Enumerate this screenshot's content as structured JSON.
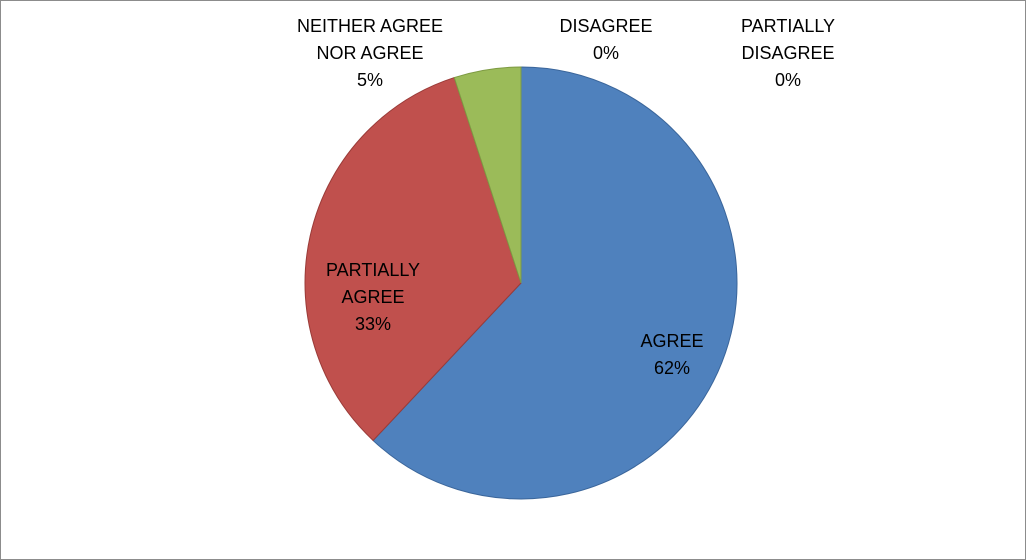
{
  "chart_data": {
    "type": "pie",
    "slices": [
      {
        "label": "AGREE",
        "value": 62,
        "value_label": "62%",
        "color": "#4F81BD",
        "border": "#3A659A"
      },
      {
        "label": "PARTIALLY AGREE",
        "value": 33,
        "value_label": "33%",
        "color": "#C0504D",
        "border": "#9A3B38"
      },
      {
        "label": "NEITHER AGREE NOR AGREE",
        "value": 5,
        "value_label": "5%",
        "color": "#9BBB59",
        "border": "#7D9A42"
      },
      {
        "label": "DISAGREE",
        "value": 0,
        "value_label": "0%",
        "color": "#8064A2",
        "border": "#8064A2"
      },
      {
        "label": "PARTIALLY DISAGREE",
        "value": 0,
        "value_label": "0%",
        "color": "#4BACC6",
        "border": "#4BACC6"
      }
    ],
    "data_labels": [
      {
        "lines": [
          "AGREE",
          "62%"
        ]
      },
      {
        "lines": [
          "PARTIALLY",
          "AGREE",
          "33%"
        ]
      },
      {
        "lines": [
          "NEITHER AGREE",
          "NOR AGREE",
          "5%"
        ]
      },
      {
        "lines": [
          "DISAGREE",
          "0%"
        ]
      },
      {
        "lines": [
          "PARTIALLY",
          "DISAGREE",
          "0%"
        ]
      }
    ],
    "start_angle": "12 o'clock",
    "direction": "clockwise",
    "legend": "none"
  }
}
